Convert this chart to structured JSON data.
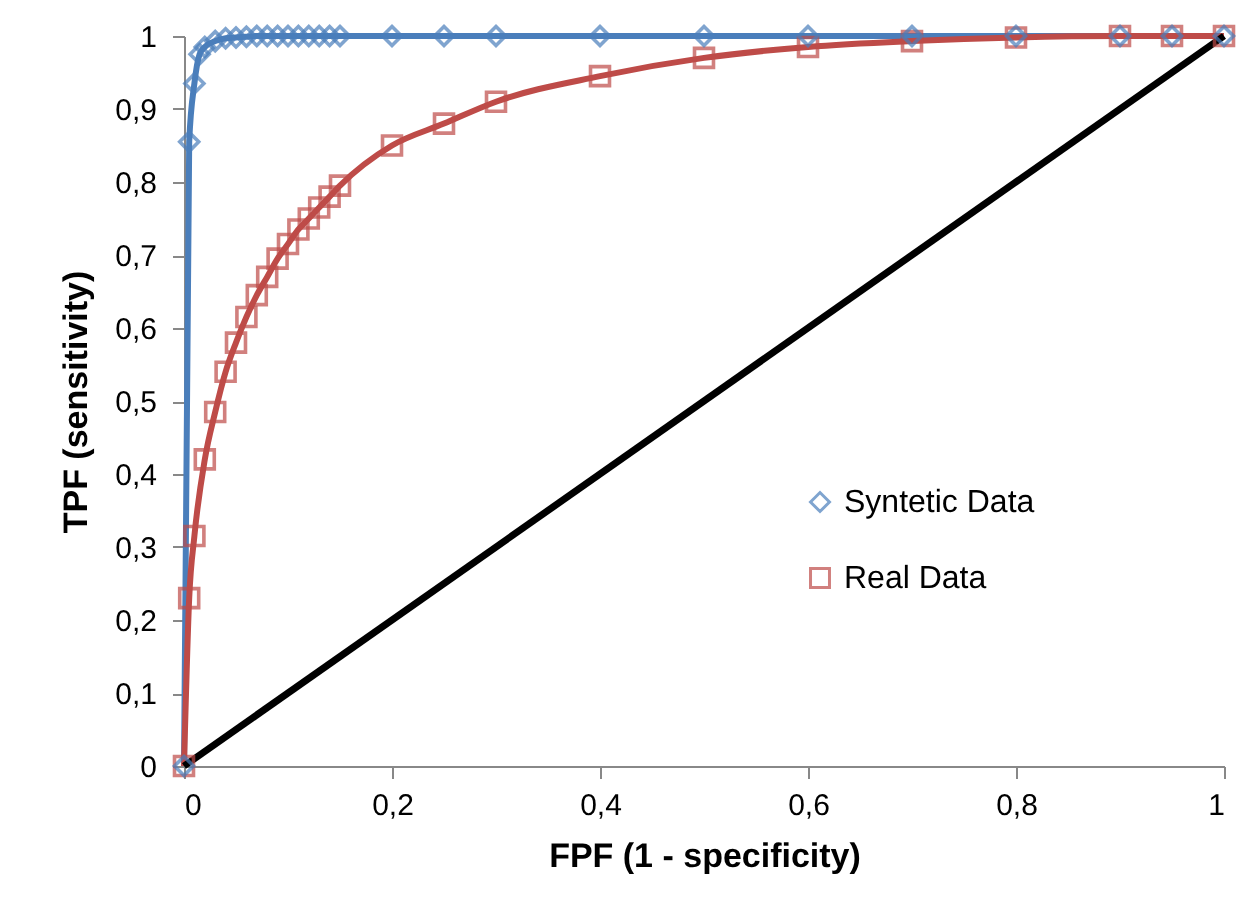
{
  "chart_data": {
    "type": "line",
    "xlabel": "FPF (1 - specificity)",
    "ylabel": "TPF (sensitivity)",
    "xlim": [
      0,
      1
    ],
    "ylim": [
      0,
      1
    ],
    "xticks": [
      0,
      {
        "value": 0.2,
        "label": "0,2"
      },
      {
        "value": 0.4,
        "label": "0,4"
      },
      {
        "value": 0.6,
        "label": "0,6"
      },
      {
        "value": 0.8,
        "label": "0,8"
      },
      1
    ],
    "yticks": [
      0,
      {
        "value": 0.1,
        "label": "0,1"
      },
      {
        "value": 0.2,
        "label": "0,2"
      },
      {
        "value": 0.3,
        "label": "0,3"
      },
      {
        "value": 0.4,
        "label": "0,4"
      },
      {
        "value": 0.5,
        "label": "0,5"
      },
      {
        "value": 0.6,
        "label": "0,6"
      },
      {
        "value": 0.7,
        "label": "0,7"
      },
      {
        "value": 0.8,
        "label": "0,8"
      },
      {
        "value": 0.9,
        "label": "0,9"
      },
      1
    ],
    "grid": false,
    "legend": "bottom right",
    "line_style": "solid",
    "series": [
      {
        "name": "Syntetic Data",
        "color": "#4a7ebb",
        "marker": "diamond",
        "x": [
          0,
          0.005,
          0.01,
          0.015,
          0.02,
          0.03,
          0.04,
          0.05,
          0.06,
          0.07,
          0.08,
          0.09,
          0.1,
          0.11,
          0.12,
          0.13,
          0.14,
          0.15,
          0.2,
          0.25,
          0.3,
          0.4,
          0.5,
          0.6,
          0.7,
          0.8,
          0.9,
          0.95,
          1
        ],
        "values": [
          0,
          0.855,
          0.935,
          0.975,
          0.985,
          0.993,
          0.997,
          0.998,
          0.999,
          1,
          1,
          1,
          1,
          1,
          1,
          1,
          1,
          1,
          1,
          1,
          1,
          1,
          1,
          1,
          1,
          1,
          1,
          1,
          1
        ]
      },
      {
        "name": "Real Data",
        "color": "#be4b48",
        "marker": "square",
        "x": [
          0,
          0.005,
          0.01,
          0.02,
          0.03,
          0.04,
          0.05,
          0.06,
          0.07,
          0.08,
          0.09,
          0.1,
          0.11,
          0.12,
          0.13,
          0.14,
          0.15,
          0.2,
          0.25,
          0.3,
          0.4,
          0.5,
          0.6,
          0.7,
          0.8,
          0.9,
          0.95,
          1
        ],
        "values": [
          0,
          0.23,
          0.315,
          0.42,
          0.485,
          0.54,
          0.58,
          0.615,
          0.645,
          0.67,
          0.695,
          0.715,
          0.735,
          0.75,
          0.765,
          0.78,
          0.795,
          0.85,
          0.88,
          0.91,
          0.945,
          0.97,
          0.985,
          0.993,
          0.998,
          1,
          1,
          1
        ]
      },
      {
        "color": "#000000",
        "marker": "none",
        "x": [
          0,
          1
        ],
        "values": [
          0,
          1
        ]
      }
    ]
  }
}
